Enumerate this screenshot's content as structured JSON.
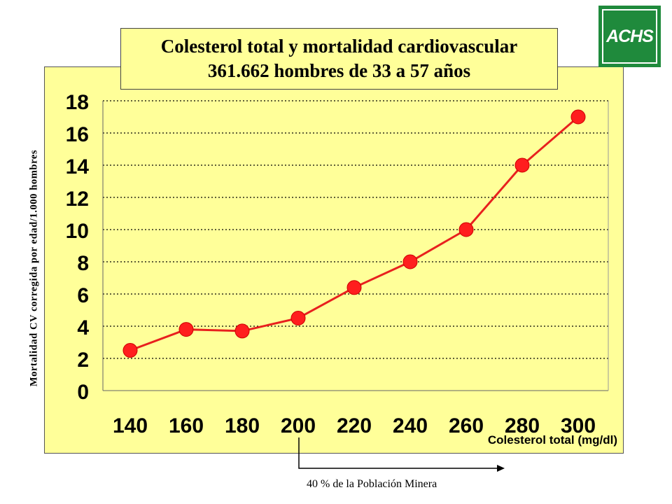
{
  "chart_data": {
    "type": "line",
    "title": "Colesterol total y mortalidad cardiovascular",
    "subtitle": "361.662 hombres de 33 a 57 años",
    "xlabel": "Colesterol total (mg/dl)",
    "ylabel": "Mortalidad CV corregida por edad/1.000 hombres",
    "categories": [
      "140",
      "160",
      "180",
      "200",
      "220",
      "240",
      "260",
      "280",
      "300"
    ],
    "series": [
      {
        "values": [
          2.5,
          3.8,
          3.7,
          4.5,
          6.4,
          8.0,
          10.0,
          14.0,
          17.0
        ]
      }
    ],
    "ylim": [
      0,
      18
    ],
    "yticks": [
      "0",
      "2",
      "4",
      "6",
      "8",
      "10",
      "12",
      "14",
      "16",
      "18"
    ],
    "grid": "horizontal-dotted",
    "line_color": "#e8201e",
    "marker_color": "#ff1e1e",
    "panel_color": "#ffff99"
  },
  "annotation": {
    "text": "40 % de la Población Minera"
  },
  "logo": {
    "text": "ACHS",
    "color": "#1f8a3c"
  }
}
